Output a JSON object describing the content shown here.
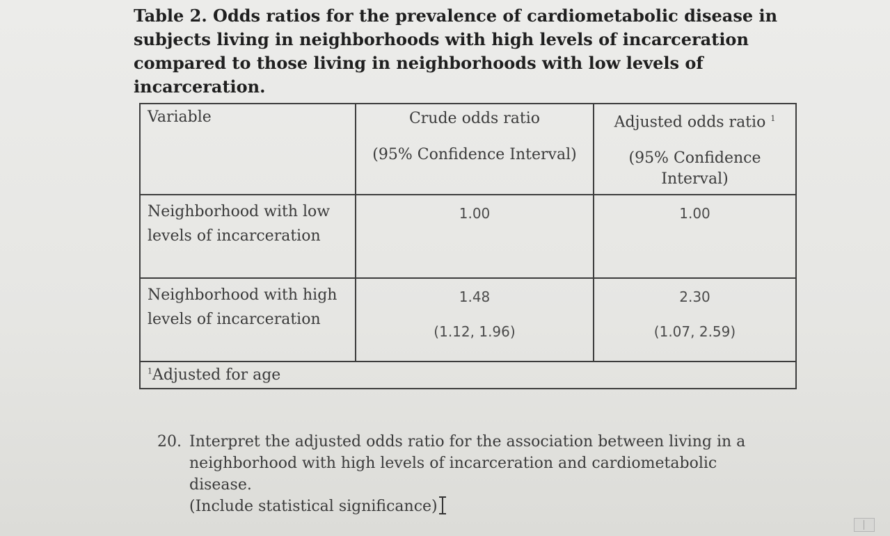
{
  "title": "Table 2. Odds ratios for the prevalence of cardiometabolic disease in subjects living in neighborhoods with high levels of incarceration compared to those living in neighborhoods with low levels of incarceration.",
  "table": {
    "headers": {
      "variable": "Variable",
      "crude_line1": "Crude odds ratio",
      "crude_line2": "(95% Confidence Interval)",
      "adjusted_line1": "Adjusted odds ratio",
      "adjusted_footnote_mark": "1",
      "adjusted_line2": "(95% Confidence Interval)"
    },
    "rows": [
      {
        "label": "Neighborhood with low levels of incarceration",
        "crude": "1.00",
        "crude_ci": "",
        "adjusted": "1.00",
        "adjusted_ci": ""
      },
      {
        "label": "Neighborhood with high levels of incarceration",
        "crude": "1.48",
        "crude_ci": "(1.12, 1.96)",
        "adjusted": "2.30",
        "adjusted_ci": "(1.07, 2.59)"
      }
    ],
    "footnote_mark": "1",
    "footnote": "Adjusted for age"
  },
  "question": {
    "number": "20.",
    "text_line1": "Interpret the adjusted odds ratio for the association between living in a",
    "text_line2": "neighborhood with high levels of incarceration and cardiometabolic disease.",
    "text_line3": "(Include statistical significance)"
  },
  "icons": {
    "text_cursor": "i-beam-cursor-icon",
    "corner": "view-toggle-icon"
  }
}
